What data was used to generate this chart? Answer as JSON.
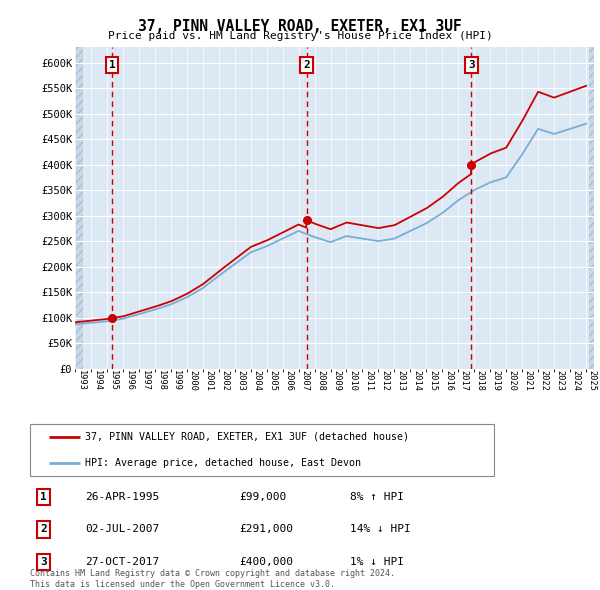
{
  "title": "37, PINN VALLEY ROAD, EXETER, EX1 3UF",
  "subtitle": "Price paid vs. HM Land Registry's House Price Index (HPI)",
  "ylabel_ticks": [
    "£0",
    "£50K",
    "£100K",
    "£150K",
    "£200K",
    "£250K",
    "£300K",
    "£350K",
    "£400K",
    "£450K",
    "£500K",
    "£550K",
    "£600K"
  ],
  "ytick_values": [
    0,
    50000,
    100000,
    150000,
    200000,
    250000,
    300000,
    350000,
    400000,
    450000,
    500000,
    550000,
    600000
  ],
  "xlim": [
    1993.0,
    2025.5
  ],
  "ylim": [
    0,
    630000
  ],
  "sale_years": [
    1995.32,
    2007.5,
    2017.82
  ],
  "sale_prices": [
    99000,
    291000,
    400000
  ],
  "sale_labels": [
    "1",
    "2",
    "3"
  ],
  "sale_date_labels": [
    "26-APR-1995",
    "02-JUL-2007",
    "27-OCT-2017"
  ],
  "sale_price_labels": [
    "£99,000",
    "£291,000",
    "£400,000"
  ],
  "sale_hpi_labels": [
    "8% ↑ HPI",
    "14% ↓ HPI",
    "1% ↓ HPI"
  ],
  "hpi_color": "#7aadd4",
  "price_color": "#cc0000",
  "dashed_line_color": "#cc0000",
  "background_plot": "#dce9f5",
  "background_hatch": "#c8d8e8",
  "grid_color": "#ffffff",
  "legend_label_red": "37, PINN VALLEY ROAD, EXETER, EX1 3UF (detached house)",
  "legend_label_blue": "HPI: Average price, detached house, East Devon",
  "footnote": "Contains HM Land Registry data © Crown copyright and database right 2024.\nThis data is licensed under the Open Government Licence v3.0.",
  "xtick_years": [
    1993,
    1994,
    1995,
    1996,
    1997,
    1998,
    1999,
    2000,
    2001,
    2002,
    2003,
    2004,
    2005,
    2006,
    2007,
    2008,
    2009,
    2010,
    2011,
    2012,
    2013,
    2014,
    2015,
    2016,
    2017,
    2018,
    2019,
    2020,
    2021,
    2022,
    2023,
    2024,
    2025
  ],
  "years_hpi": [
    1993,
    1994,
    1995,
    1996,
    1997,
    1998,
    1999,
    2000,
    2001,
    2002,
    2003,
    2004,
    2005,
    2006,
    2007,
    2008,
    2009,
    2010,
    2011,
    2012,
    2013,
    2014,
    2015,
    2016,
    2017,
    2018,
    2019,
    2020,
    2021,
    2022,
    2023,
    2024,
    2025
  ],
  "hpi_values": [
    87000,
    90000,
    93000,
    98000,
    107000,
    116000,
    126000,
    140000,
    158000,
    182000,
    205000,
    228000,
    240000,
    255000,
    270000,
    258000,
    248000,
    260000,
    255000,
    250000,
    255000,
    270000,
    285000,
    305000,
    330000,
    350000,
    365000,
    375000,
    420000,
    470000,
    460000,
    470000,
    480000
  ]
}
